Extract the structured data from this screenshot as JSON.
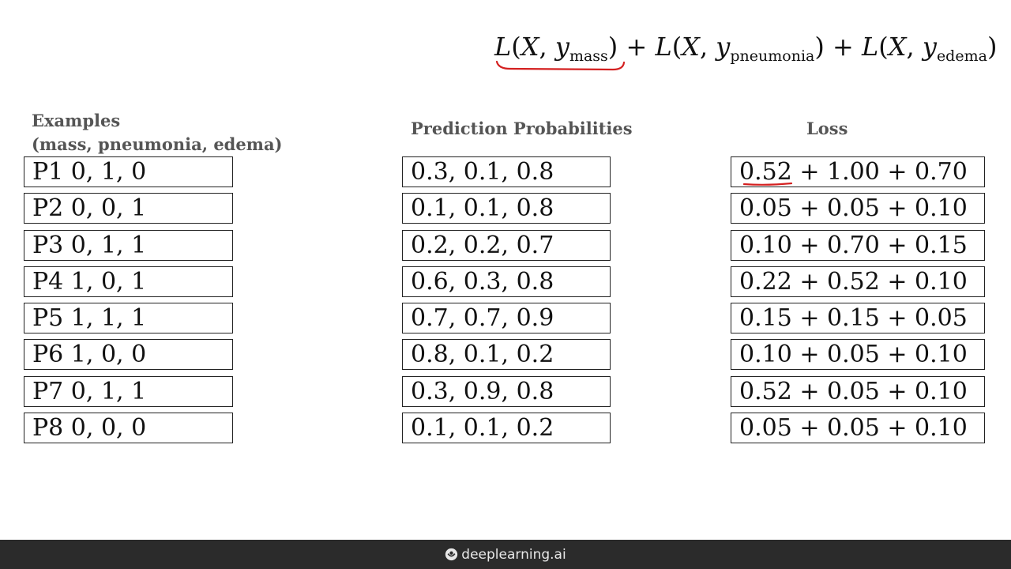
{
  "formula": {
    "L": "L",
    "open": "(",
    "X": "X",
    "comma": ", ",
    "y": "y",
    "close": ")",
    "plus": " + ",
    "sub_mass": "mass",
    "sub_pneumonia": "pneumonia",
    "sub_edema": "edema"
  },
  "headers": {
    "examples_line1": "Examples",
    "examples_line2": "(mass, pneumonia, edema)",
    "predictions": "Prediction Probabilities",
    "loss": "Loss"
  },
  "rows": [
    {
      "example": "P1 0, 1, 0",
      "prediction": "0.3, 0.1, 0.8",
      "loss": "0.52 + 1.00 + 0.70"
    },
    {
      "example": "P2 0, 0, 1",
      "prediction": "0.1, 0.1, 0.8",
      "loss": "0.05 + 0.05 + 0.10"
    },
    {
      "example": "P3 0, 1, 1",
      "prediction": "0.2, 0.2, 0.7",
      "loss": "0.10 + 0.70 + 0.15"
    },
    {
      "example": "P4 1, 0, 1",
      "prediction": "0.6, 0.3, 0.8",
      "loss": "0.22 + 0.52 + 0.10"
    },
    {
      "example": "P5 1, 1, 1",
      "prediction": "0.7, 0.7, 0.9",
      "loss": "0.15 + 0.15 + 0.05"
    },
    {
      "example": "P6 1, 0, 0",
      "prediction": "0.8, 0.1, 0.2",
      "loss": "0.10 + 0.05 + 0.10"
    },
    {
      "example": "P7 0, 1, 1",
      "prediction": "0.3, 0.9, 0.8",
      "loss": "0.52 + 0.05 + 0.10"
    },
    {
      "example": "P8 0, 0, 0",
      "prediction": "0.1, 0.1, 0.2",
      "loss": "0.05 + 0.05 + 0.10"
    }
  ],
  "annotations": {
    "color": "#d42020",
    "icon": "hand-drawn-underline-icon"
  },
  "footer": {
    "brand": "deeplearning.ai",
    "logo_icon": "deeplearning-logo-icon"
  }
}
